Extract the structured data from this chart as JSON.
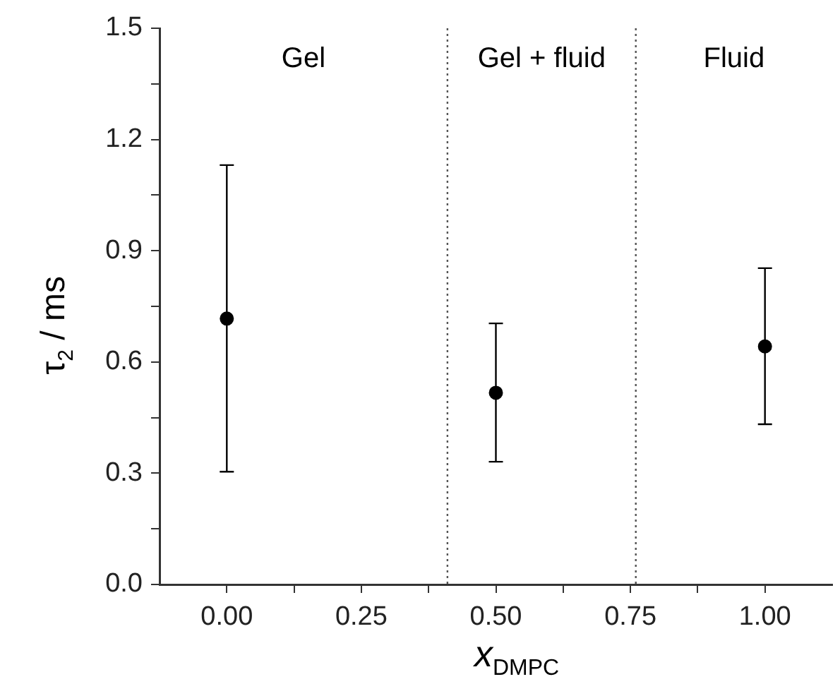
{
  "chart_data": {
    "type": "scatter",
    "xlabel": "x$_{DMPC}$",
    "ylabel": "τ$_{2}$ / ms",
    "x": [
      0,
      0.5,
      1
    ],
    "series": [
      {
        "color": "#000000",
        "values": [
          0.717,
          0.517,
          0.642
        ],
        "errors": [
          [
            0.304,
            1.131
          ],
          [
            0.331,
            0.704
          ],
          [
            0.432,
            0.853
          ]
        ]
      }
    ],
    "xlim": [
      -0.125,
      1.125
    ],
    "xticks": [
      {
        "value": 0,
        "label": "0.00"
      },
      {
        "value": 0.125,
        "label": null
      },
      {
        "value": 0.25,
        "label": "0.25"
      },
      {
        "value": 0.375,
        "label": null
      },
      {
        "value": 0.5,
        "label": "0.50"
      },
      {
        "value": 0.625,
        "label": null
      },
      {
        "value": 0.75,
        "label": "0.75"
      },
      {
        "value": 0.875,
        "label": null
      },
      {
        "value": 1,
        "label": "1.00"
      }
    ],
    "ylim": [
      0,
      1.5
    ],
    "yticks": [
      {
        "value": 0,
        "label": "0.0"
      },
      {
        "value": 0.15,
        "label": null
      },
      {
        "value": 0.3,
        "label": "0.3"
      },
      {
        "value": 0.45,
        "label": null
      },
      {
        "value": 0.6,
        "label": "0.6"
      },
      {
        "value": 0.75,
        "label": null
      },
      {
        "value": 0.9,
        "label": "0.9"
      },
      {
        "value": 1.05,
        "label": null
      },
      {
        "value": 1.2,
        "label": "1.2"
      },
      {
        "value": 1.35,
        "label": null
      },
      {
        "value": 1.5,
        "label": "1.5"
      }
    ],
    "ref_lines": [
      {
        "axis": "x",
        "value": 0.41,
        "line_style": "dotted",
        "color": "#555555"
      },
      {
        "axis": "x",
        "value": 0.76,
        "line_style": "dotted",
        "color": "#555555"
      }
    ],
    "annotations": [
      "Gel",
      "Gel + fluid",
      "Fluid"
    ],
    "marker": "circle",
    "grid": false,
    "legend": false
  }
}
